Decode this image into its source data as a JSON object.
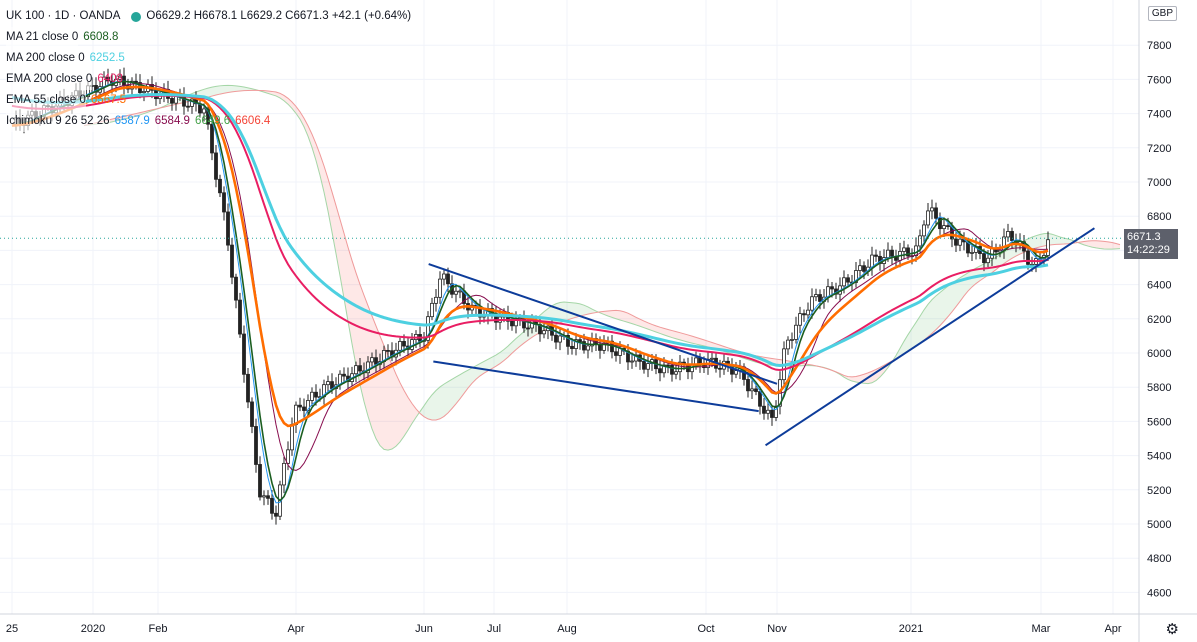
{
  "header": {
    "symbol": "UK 100 · 1D · OANDA",
    "ohlc": "O6629.2 H6678.1 L6629.2 C6671.3 +42.1 (+0.64%)",
    "indicators": [
      {
        "label": "MA 21 close 0",
        "value": "6608.8",
        "color": "#1b5e20"
      },
      {
        "label": "MA 200 close 0",
        "value": "6252.5",
        "color": "#4dd0e1"
      },
      {
        "label": "EMA 200 close 0",
        "value": "6408",
        "color": "#e91e63"
      },
      {
        "label": "EMA 55 close 0",
        "value": "6567.5",
        "color": "#ff6d00"
      }
    ],
    "ichimoku": {
      "label": "Ichimoku 9 26 52 26",
      "values": [
        "6587.9",
        "6584.9",
        "6649.6",
        "6606.4"
      ],
      "colors": [
        "#2196f3",
        "#880e4f",
        "#43a047",
        "#f44336"
      ]
    }
  },
  "currency": "GBP",
  "last_price": {
    "value": "6671.3",
    "countdown": "14:22:29"
  },
  "chart_data": {
    "type": "line",
    "title": "UK 100 · 1D · OANDA",
    "currency": "GBP",
    "y_ticks": [
      4600,
      4800,
      5000,
      5200,
      5400,
      5600,
      5800,
      6000,
      6200,
      6400,
      6600,
      6800,
      7000,
      7200,
      7400,
      7600,
      7800
    ],
    "x_ticks": [
      "25",
      "2020",
      "Feb",
      "Apr",
      "Jun",
      "Jul",
      "Aug",
      "Oct",
      "Nov",
      "2021",
      "Mar",
      "Apr"
    ],
    "ylim": [
      4500,
      8000
    ],
    "close": {
      "dates": [
        "2019-12-25",
        "2020-01-10",
        "2020-01-24",
        "2020-02-10",
        "2020-02-21",
        "2020-03-02",
        "2020-03-09",
        "2020-03-16",
        "2020-03-23",
        "2020-03-31",
        "2020-04-15",
        "2020-05-01",
        "2020-05-15",
        "2020-06-01",
        "2020-06-08",
        "2020-06-22",
        "2020-07-06",
        "2020-07-20",
        "2020-08-03",
        "2020-08-17",
        "2020-09-01",
        "2020-09-15",
        "2020-10-01",
        "2020-10-15",
        "2020-10-30",
        "2020-11-05",
        "2020-11-16",
        "2020-12-01",
        "2020-12-15",
        "2021-01-04",
        "2021-01-08",
        "2021-01-22",
        "2021-02-05",
        "2021-02-15",
        "2021-02-26",
        "2021-03-05"
      ],
      "values": [
        7330,
        7600,
        7550,
        7480,
        7430,
        6700,
        5950,
        5200,
        5050,
        5650,
        5800,
        5900,
        6000,
        6100,
        6450,
        6250,
        6200,
        6150,
        6050,
        6050,
        5950,
        5900,
        5950,
        5900,
        5600,
        6050,
        6300,
        6400,
        6550,
        6600,
        6850,
        6650,
        6550,
        6700,
        6500,
        6671
      ]
    },
    "series": [
      {
        "name": "MA 21 close 0",
        "color": "#1b5e20",
        "last": 6608.8
      },
      {
        "name": "MA 200 close 0",
        "color": "#4dd0e1",
        "last": 6252.5
      },
      {
        "name": "EMA 200 close 0",
        "color": "#e91e63",
        "last": 6408
      },
      {
        "name": "EMA 55 close 0",
        "color": "#ff6d00",
        "last": 6567.5
      }
    ],
    "trendlines": [
      {
        "from": [
          "2020-06-03",
          6520
        ],
        "to": [
          "2020-11-01",
          5820
        ]
      },
      {
        "from": [
          "2020-06-05",
          5950
        ],
        "to": [
          "2020-10-24",
          5660
        ]
      },
      {
        "from": [
          "2020-10-27",
          5460
        ],
        "to": [
          "2021-03-24",
          6730
        ]
      }
    ]
  }
}
